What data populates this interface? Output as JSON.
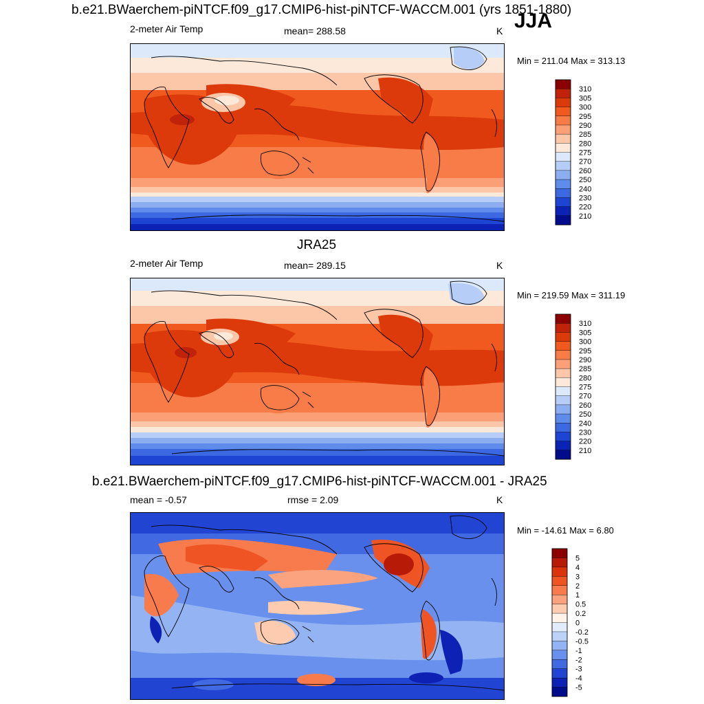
{
  "season": "JJA",
  "panels": [
    {
      "title": "b.e21.BWaerchem-piNTCF.f09_g17.CMIP6-hist-piNTCF-WACCM.001 (yrs 1851-1880)",
      "left_label": "2-meter Air Temp",
      "center_label": "mean= 288.58",
      "units": "K",
      "minmax": "Min = 211.04 Max = 313.13",
      "colorbar": {
        "labels": [
          "310",
          "305",
          "300",
          "295",
          "290",
          "285",
          "280",
          "275",
          "270",
          "260",
          "250",
          "240",
          "230",
          "220",
          "210"
        ],
        "colors": [
          "#8b0000",
          "#c1220a",
          "#dd3a0c",
          "#f15a1f",
          "#f77c48",
          "#fb9f77",
          "#fcc6a8",
          "#fde9d9",
          "#dbe9fb",
          "#b5cdf7",
          "#8caef1",
          "#5f8ceb",
          "#3c68e2",
          "#1e44d3",
          "#0c22b5",
          "#000c8a"
        ]
      }
    },
    {
      "title": "JRA25",
      "left_label": "2-meter Air Temp",
      "center_label": "mean= 289.15",
      "units": "K",
      "minmax": "Min = 219.59 Max = 311.19",
      "colorbar": {
        "labels": [
          "310",
          "305",
          "300",
          "295",
          "290",
          "285",
          "280",
          "275",
          "270",
          "260",
          "250",
          "240",
          "230",
          "220",
          "210"
        ],
        "colors": [
          "#8b0000",
          "#c1220a",
          "#dd3a0c",
          "#f15a1f",
          "#f77c48",
          "#fb9f77",
          "#fcc6a8",
          "#fde9d9",
          "#dbe9fb",
          "#b5cdf7",
          "#8caef1",
          "#5f8ceb",
          "#3c68e2",
          "#1e44d3",
          "#0c22b5",
          "#000c8a"
        ]
      }
    },
    {
      "title": "b.e21.BWaerchem-piNTCF.f09_g17.CMIP6-hist-piNTCF-WACCM.001 - JRA25",
      "left_label": "mean =  -0.57",
      "center_label": "rmse =   2.09",
      "units": "K",
      "minmax": "Min = -14.61 Max =   6.80",
      "colorbar": {
        "labels": [
          "5",
          "4",
          "3",
          "2",
          "1",
          "0.5",
          "0.2",
          "0",
          "-0.2",
          "-0.5",
          "-1",
          "-2",
          "-3",
          "-4",
          "-5"
        ],
        "colors": [
          "#8b0000",
          "#b81a08",
          "#d9340d",
          "#ef5524",
          "#f87b4d",
          "#fba27f",
          "#fdcbb0",
          "#fff3ea",
          "#e2ecfb",
          "#bcd3f8",
          "#93b3f3",
          "#6890ec",
          "#4069e2",
          "#2145d2",
          "#0d22b4",
          "#000c8a"
        ]
      }
    }
  ]
}
